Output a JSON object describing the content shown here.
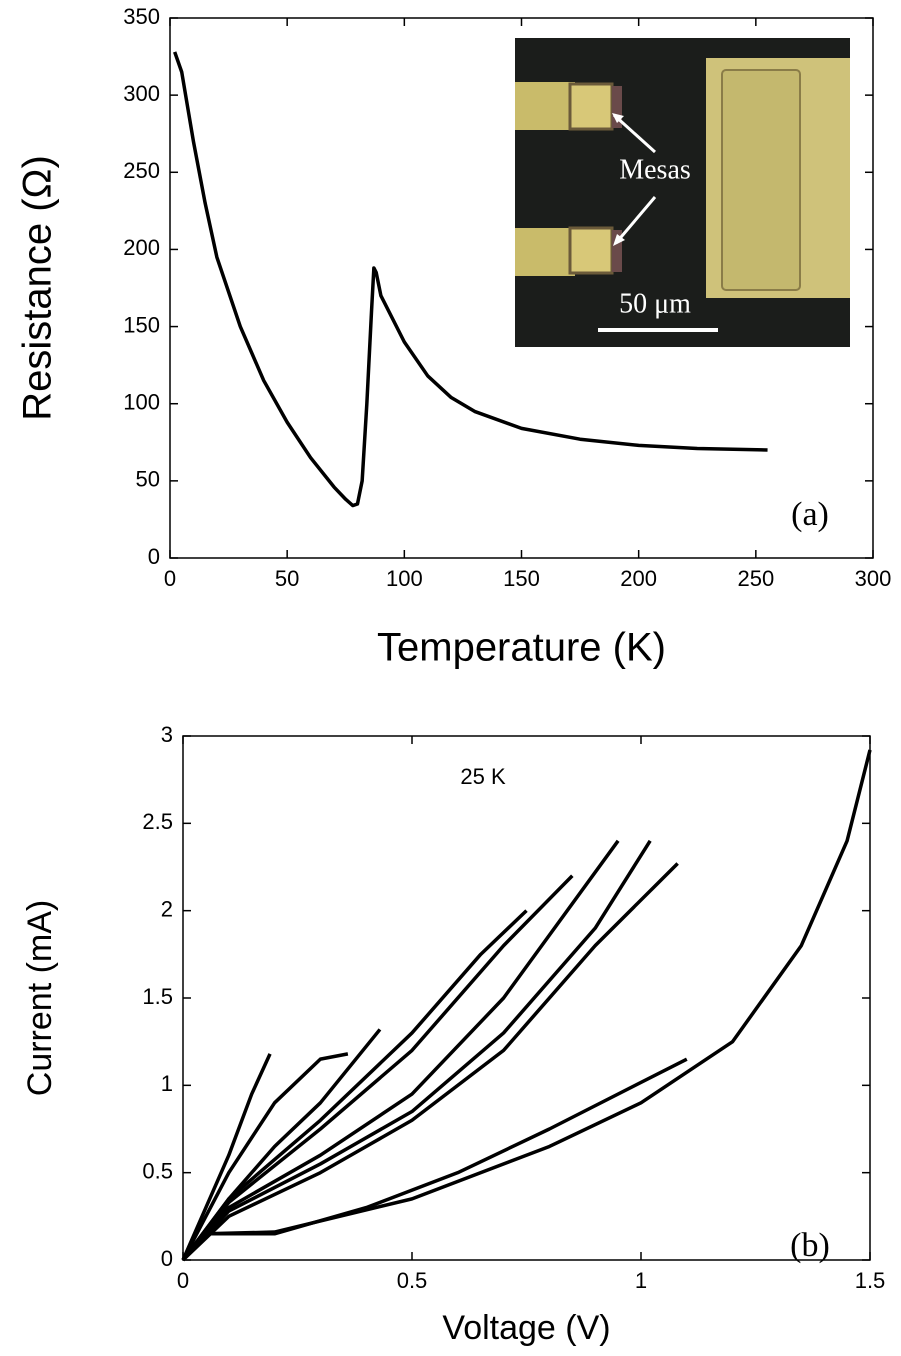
{
  "chart_data": [
    {
      "type": "line",
      "x_label": "Temperature (K)",
      "y_label": "Resistance (Ω)",
      "xlim": [
        0,
        300
      ],
      "ylim": [
        0,
        350
      ],
      "xticks": [
        0,
        50,
        100,
        150,
        200,
        250,
        300
      ],
      "yticks": [
        0,
        50,
        100,
        150,
        200,
        250,
        300,
        350
      ],
      "annotations": [
        "(a)",
        "Mesas",
        "50 μm"
      ],
      "series": [
        {
          "color": "#000000",
          "x": [
            2,
            5,
            10,
            15,
            20,
            30,
            40,
            50,
            60,
            70,
            75,
            78,
            80,
            82,
            84,
            86,
            87,
            88,
            90,
            100,
            110,
            120,
            130,
            150,
            175,
            200,
            225,
            255
          ],
          "values": [
            328,
            315,
            270,
            230,
            195,
            150,
            115,
            88,
            65,
            46,
            38,
            34,
            35,
            50,
            100,
            160,
            188,
            185,
            170,
            140,
            118,
            104,
            95,
            84,
            77,
            73,
            71,
            70
          ]
        }
      ]
    },
    {
      "type": "line",
      "x_label": "Voltage (V)",
      "y_label": "Current (mA)",
      "xlim": [
        0,
        1.5
      ],
      "ylim": [
        0,
        3
      ],
      "xticks": [
        0,
        0.5,
        1,
        1.5
      ],
      "yticks": [
        0,
        0.5,
        1,
        1.5,
        2,
        2.5,
        3
      ],
      "annotations": [
        "25 K",
        "(b)"
      ],
      "series": [
        {
          "color": "#000000",
          "x": [
            0,
            0.05,
            0.1,
            0.15,
            0.19
          ],
          "values": [
            0,
            0.3,
            0.6,
            0.95,
            1.18
          ]
        },
        {
          "color": "#000000",
          "x": [
            0,
            0.05,
            0.1,
            0.2,
            0.3,
            0.36
          ],
          "values": [
            0,
            0.25,
            0.5,
            0.9,
            1.15,
            1.18
          ]
        },
        {
          "color": "#000000",
          "x": [
            0,
            0.1,
            0.2,
            0.3,
            0.43
          ],
          "values": [
            0,
            0.35,
            0.65,
            0.9,
            1.32
          ]
        },
        {
          "color": "#000000",
          "x": [
            0,
            0.1,
            0.3,
            0.5,
            0.65,
            0.75
          ],
          "values": [
            0,
            0.35,
            0.8,
            1.3,
            1.75,
            2.0
          ]
        },
        {
          "color": "#000000",
          "x": [
            0,
            0.1,
            0.3,
            0.5,
            0.7,
            0.85
          ],
          "values": [
            0,
            0.33,
            0.75,
            1.2,
            1.8,
            2.2
          ]
        },
        {
          "color": "#000000",
          "x": [
            0,
            0.1,
            0.3,
            0.5,
            0.7,
            0.95
          ],
          "values": [
            0,
            0.3,
            0.6,
            0.95,
            1.5,
            2.4
          ]
        },
        {
          "color": "#000000",
          "x": [
            0,
            0.1,
            0.3,
            0.5,
            0.7,
            0.9,
            1.02
          ],
          "values": [
            0,
            0.28,
            0.55,
            0.85,
            1.3,
            1.9,
            2.4
          ]
        },
        {
          "color": "#000000",
          "x": [
            0,
            0.1,
            0.3,
            0.5,
            0.7,
            0.9,
            1.08
          ],
          "values": [
            0,
            0.25,
            0.5,
            0.8,
            1.2,
            1.8,
            2.27
          ]
        },
        {
          "color": "#000000",
          "x": [
            0,
            0.05,
            0.2,
            0.4,
            0.6,
            0.8,
            1.1
          ],
          "values": [
            0,
            0.15,
            0.15,
            0.3,
            0.5,
            0.75,
            1.15
          ]
        },
        {
          "color": "#000000",
          "x": [
            0,
            0.05,
            0.2,
            0.5,
            0.8,
            1.0,
            1.2,
            1.35,
            1.45,
            1.5
          ],
          "values": [
            0,
            0.15,
            0.16,
            0.35,
            0.65,
            0.9,
            1.25,
            1.8,
            2.4,
            2.92
          ]
        }
      ]
    }
  ]
}
